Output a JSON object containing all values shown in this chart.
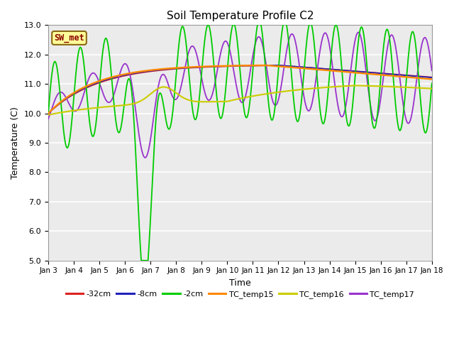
{
  "title": "Soil Temperature Profile C2",
  "xlabel": "Time",
  "ylabel": "Temperature (C)",
  "ylim": [
    5.0,
    13.0
  ],
  "yticks": [
    5.0,
    6.0,
    7.0,
    8.0,
    9.0,
    10.0,
    11.0,
    12.0,
    13.0
  ],
  "x_labels": [
    "Jan 3",
    "Jan 4",
    "Jan 5",
    "Jan 6",
    "Jan 7",
    "Jan 8",
    "Jan 9",
    "Jan 10",
    "Jan 11",
    "Jan 12",
    "Jan 13",
    "Jan 14",
    "Jan 15",
    "Jan 16",
    "Jan 17",
    "Jan 18"
  ],
  "bg_color": "#ebebeb",
  "sw_met_label": "SW_met",
  "sw_met_bg": "#ffff99",
  "sw_met_border": "#8b6914",
  "sw_met_text": "#8b0000",
  "legend_entries": [
    {
      "label": "-32cm",
      "color": "#dd2222"
    },
    {
      "label": "-8cm",
      "color": "#2222bb"
    },
    {
      "label": "-2cm",
      "color": "#00cc00"
    },
    {
      "label": "TC_temp15",
      "color": "#ff8800"
    },
    {
      "label": "TC_temp16",
      "color": "#cccc00"
    },
    {
      "label": "TC_temp17",
      "color": "#9933cc"
    }
  ],
  "line_colors": {
    "neg32": "#dd2222",
    "neg8": "#2222bb",
    "neg2": "#00cc00",
    "tc15": "#ff8800",
    "tc16": "#cccc00",
    "tc17": "#9933cc"
  }
}
